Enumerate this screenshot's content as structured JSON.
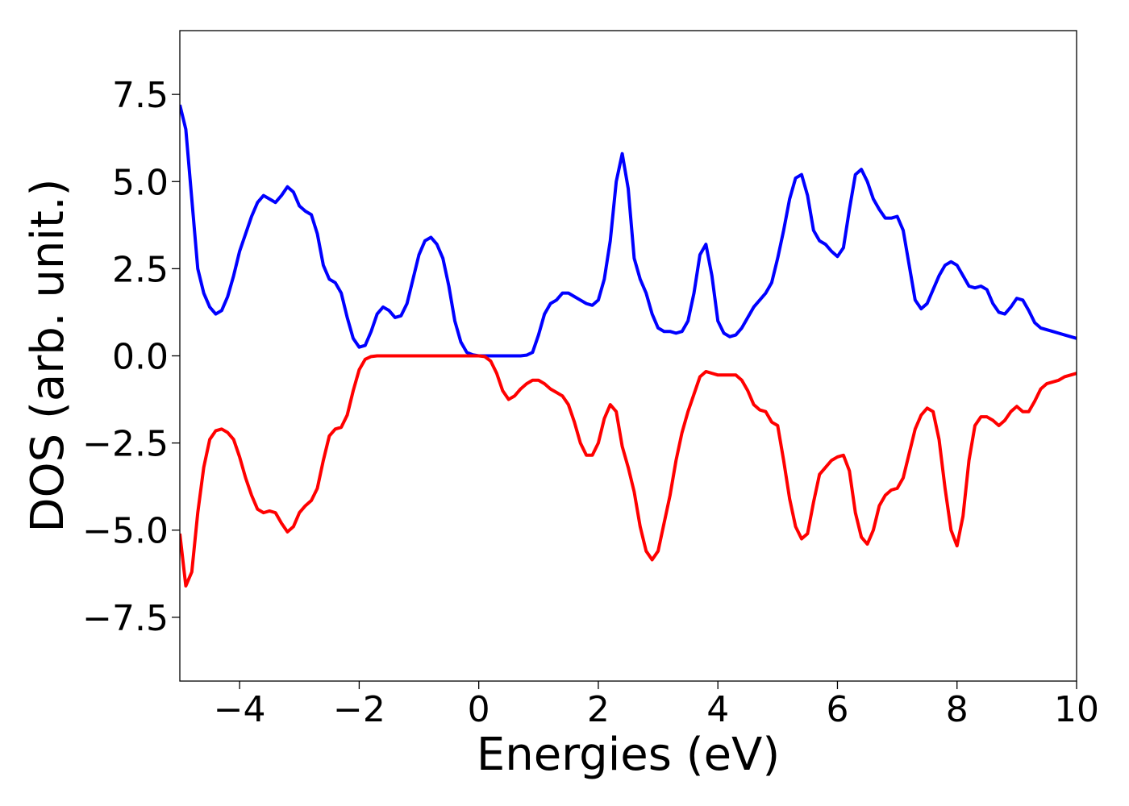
{
  "chart_data": {
    "type": "line",
    "xlabel": "Energies (eV)",
    "ylabel": "DOS (arb. unit.)",
    "xlim": [
      -5,
      10
    ],
    "ylim": [
      -9.33,
      9.33
    ],
    "xticks": [
      {
        "value": -4,
        "label": "−4"
      },
      {
        "value": -2,
        "label": "−2"
      },
      0,
      2,
      4,
      6,
      8,
      10
    ],
    "yticks": [
      {
        "value": -7.5,
        "label": "−7.5"
      },
      {
        "value": -5,
        "label": "−5.0"
      },
      {
        "value": -2.5,
        "label": "−2.5"
      },
      {
        "value": 0,
        "label": "0.0"
      },
      2.5,
      {
        "value": 5,
        "label": "5.0"
      },
      7.5
    ],
    "x": [
      -5.0,
      -4.9,
      -4.8,
      -4.7,
      -4.6,
      -4.5,
      -4.4,
      -4.3,
      -4.2,
      -4.1,
      -4.0,
      -3.9,
      -3.8,
      -3.7,
      -3.6,
      -3.5,
      -3.4,
      -3.3,
      -3.2,
      -3.1,
      -3.0,
      -2.9,
      -2.8,
      -2.7,
      -2.6,
      -2.5,
      -2.4,
      -2.3,
      -2.2,
      -2.1,
      -2.0,
      -1.9,
      -1.8,
      -1.7,
      -1.6,
      -1.5,
      -1.4,
      -1.3,
      -1.2,
      -1.1,
      -1.0,
      -0.9,
      -0.8,
      -0.7,
      -0.6,
      -0.5,
      -0.4,
      -0.3,
      -0.2,
      -0.1,
      0.0,
      0.1,
      0.2,
      0.3,
      0.4,
      0.5,
      0.6,
      0.7,
      0.8,
      0.9,
      1.0,
      1.1,
      1.2,
      1.3,
      1.4,
      1.5,
      1.6,
      1.7,
      1.8,
      1.9,
      2.0,
      2.1,
      2.2,
      2.3,
      2.4,
      2.5,
      2.6,
      2.7,
      2.8,
      2.9,
      3.0,
      3.1,
      3.2,
      3.3,
      3.4,
      3.5,
      3.6,
      3.7,
      3.8,
      3.9,
      4.0,
      4.1,
      4.2,
      4.3,
      4.4,
      4.5,
      4.6,
      4.7,
      4.8,
      4.9,
      5.0,
      5.1,
      5.2,
      5.3,
      5.4,
      5.5,
      5.6,
      5.7,
      5.8,
      5.9,
      6.0,
      6.1,
      6.2,
      6.3,
      6.4,
      6.5,
      6.6,
      6.7,
      6.8,
      6.9,
      7.0,
      7.1,
      7.2,
      7.3,
      7.4,
      7.5,
      7.6,
      7.7,
      7.8,
      7.9,
      8.0,
      8.1,
      8.2,
      8.3,
      8.4,
      8.5,
      8.6,
      8.7,
      8.8,
      8.9,
      9.0,
      9.1,
      9.2,
      9.3,
      9.4,
      9.5,
      9.6,
      9.7,
      9.8,
      9.9,
      10.0
    ],
    "series": [
      {
        "color": "#0000ff",
        "values": [
          7.2,
          6.5,
          4.5,
          2.5,
          1.8,
          1.4,
          1.2,
          1.3,
          1.7,
          2.3,
          3.0,
          3.5,
          4.0,
          4.4,
          4.6,
          4.5,
          4.4,
          4.6,
          4.85,
          4.7,
          4.3,
          4.15,
          4.05,
          3.5,
          2.6,
          2.2,
          2.1,
          1.8,
          1.1,
          0.5,
          0.25,
          0.3,
          0.7,
          1.2,
          1.4,
          1.3,
          1.1,
          1.15,
          1.5,
          2.2,
          2.9,
          3.3,
          3.4,
          3.2,
          2.8,
          2.0,
          1.0,
          0.4,
          0.1,
          0.03,
          0,
          0,
          0,
          0,
          0,
          0,
          0,
          0,
          0.02,
          0.1,
          0.6,
          1.2,
          1.5,
          1.6,
          1.8,
          1.8,
          1.7,
          1.6,
          1.5,
          1.45,
          1.6,
          2.2,
          3.3,
          5.0,
          5.8,
          4.8,
          2.8,
          2.2,
          1.8,
          1.2,
          0.8,
          0.7,
          0.7,
          0.65,
          0.7,
          1.0,
          1.8,
          2.9,
          3.2,
          2.3,
          1.0,
          0.65,
          0.55,
          0.6,
          0.8,
          1.1,
          1.4,
          1.6,
          1.8,
          2.1,
          2.8,
          3.6,
          4.5,
          5.1,
          5.2,
          4.6,
          3.6,
          3.3,
          3.2,
          3.0,
          2.85,
          3.1,
          4.2,
          5.2,
          5.35,
          5.0,
          4.5,
          4.2,
          3.95,
          3.95,
          4.0,
          3.6,
          2.6,
          1.6,
          1.35,
          1.5,
          1.9,
          2.3,
          2.6,
          2.7,
          2.6,
          2.3,
          2.0,
          1.95,
          2.0,
          1.9,
          1.5,
          1.25,
          1.2,
          1.4,
          1.65,
          1.6,
          1.3,
          0.95,
          0.8,
          0.75,
          0.7,
          0.65,
          0.6,
          0.55,
          0.5
        ]
      },
      {
        "color": "#ff0000",
        "values": [
          -5.1,
          -6.6,
          -6.2,
          -4.5,
          -3.2,
          -2.4,
          -2.15,
          -2.1,
          -2.2,
          -2.4,
          -2.9,
          -3.5,
          -4.0,
          -4.4,
          -4.5,
          -4.45,
          -4.5,
          -4.8,
          -5.05,
          -4.9,
          -4.5,
          -4.3,
          -4.15,
          -3.8,
          -3.0,
          -2.3,
          -2.1,
          -2.05,
          -1.7,
          -1.0,
          -0.4,
          -0.1,
          -0.02,
          0,
          0,
          0,
          0,
          0,
          0,
          0,
          0,
          0,
          0,
          0,
          0,
          0,
          0,
          0,
          0,
          0,
          0,
          -0.02,
          -0.15,
          -0.5,
          -1.0,
          -1.25,
          -1.15,
          -0.95,
          -0.8,
          -0.7,
          -0.7,
          -0.8,
          -0.95,
          -1.05,
          -1.15,
          -1.4,
          -1.9,
          -2.5,
          -2.85,
          -2.85,
          -2.5,
          -1.8,
          -1.4,
          -1.6,
          -2.6,
          -3.2,
          -3.9,
          -4.9,
          -5.6,
          -5.85,
          -5.6,
          -4.8,
          -4.0,
          -3.0,
          -2.2,
          -1.6,
          -1.1,
          -0.6,
          -0.45,
          -0.5,
          -0.55,
          -0.55,
          -0.55,
          -0.55,
          -0.7,
          -1.0,
          -1.4,
          -1.55,
          -1.6,
          -1.9,
          -2.0,
          -3.0,
          -4.1,
          -4.9,
          -5.25,
          -5.1,
          -4.2,
          -3.4,
          -3.2,
          -3.0,
          -2.9,
          -2.85,
          -3.3,
          -4.5,
          -5.2,
          -5.4,
          -5.0,
          -4.3,
          -4.0,
          -3.85,
          -3.8,
          -3.5,
          -2.8,
          -2.1,
          -1.7,
          -1.5,
          -1.6,
          -2.4,
          -3.8,
          -5.0,
          -5.45,
          -4.6,
          -3.0,
          -2.0,
          -1.75,
          -1.75,
          -1.85,
          -2.0,
          -1.85,
          -1.6,
          -1.45,
          -1.6,
          -1.6,
          -1.3,
          -0.95,
          -0.8,
          -0.75,
          -0.7,
          -0.6,
          -0.55,
          -0.5
        ]
      }
    ]
  }
}
